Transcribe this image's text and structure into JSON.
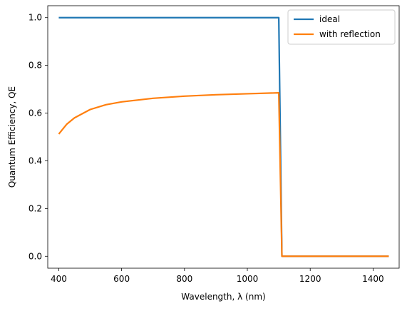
{
  "chart_data": {
    "type": "line",
    "title": "",
    "xlabel": "Wavelength, λ (nm)",
    "ylabel": "Quantum Efficiency, QE",
    "xlim": [
      365,
      1483
    ],
    "ylim": [
      -0.05,
      1.05
    ],
    "xticks": [
      400,
      600,
      800,
      1000,
      1200,
      1400
    ],
    "yticks": [
      0.0,
      0.2,
      0.4,
      0.6,
      0.8,
      1.0
    ],
    "xtick_labels": [
      "400",
      "600",
      "800",
      "1000",
      "1200",
      "1400"
    ],
    "ytick_labels": [
      "0.0",
      "0.2",
      "0.4",
      "0.6",
      "0.8",
      "1.0"
    ],
    "grid": false,
    "legend_position": "top-right",
    "series": [
      {
        "name": "ideal",
        "color": "#1f77b4",
        "x": [
          400,
          1100,
          1110,
          1450
        ],
        "y": [
          1.0,
          1.0,
          0.0,
          0.0
        ]
      },
      {
        "name": "with reflection",
        "color": "#ff7f0e",
        "x": [
          400,
          425,
          450,
          500,
          550,
          600,
          700,
          800,
          900,
          1000,
          1100,
          1110,
          1450
        ],
        "y": [
          0.512,
          0.553,
          0.58,
          0.615,
          0.635,
          0.647,
          0.662,
          0.671,
          0.677,
          0.681,
          0.685,
          0.0,
          0.0
        ]
      }
    ]
  }
}
